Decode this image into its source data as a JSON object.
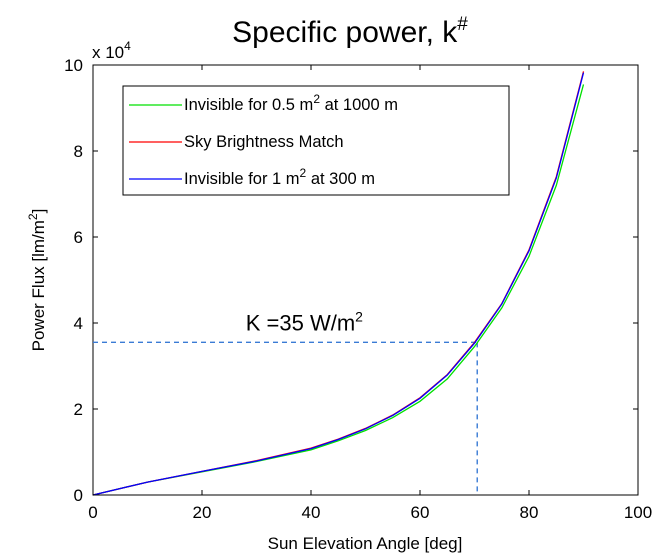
{
  "chart_data": {
    "type": "line",
    "title": "Specific power, k",
    "title_sup": "#",
    "xlabel": "Sun Elevation Angle [deg]",
    "ylabel": "Power Flux [lm/m",
    "ylabel_sup": "2",
    "ylabel_end": "]",
    "xlim": [
      0,
      100
    ],
    "ylim": [
      0,
      100000
    ],
    "xticks": [
      0,
      20,
      40,
      60,
      80,
      100
    ],
    "yticks": [
      0,
      20000,
      40000,
      60000,
      80000,
      100000
    ],
    "ytick_labels": [
      "0",
      "2",
      "4",
      "6",
      "8",
      "10"
    ],
    "y_multiplier_base": "x 10",
    "y_multiplier_exp": "4",
    "grid": false,
    "legend_position": "top-left",
    "series": [
      {
        "name_pre": "Invisible for 0.5 m",
        "name_sup": "2",
        "name_post": " at 1000 m",
        "color": "#00e000",
        "x": [
          0,
          10,
          20,
          30,
          40,
          45,
          50,
          55,
          60,
          65,
          70,
          75,
          80,
          85,
          90
        ],
        "y": [
          0,
          3000,
          5400,
          7800,
          10500,
          12600,
          15000,
          18000,
          21800,
          27000,
          34500,
          43500,
          55500,
          72000,
          95500
        ]
      },
      {
        "name_pre": "Sky Brightness Match",
        "name_sup": "",
        "name_post": "",
        "color": "#ff0000",
        "x": [
          0,
          10,
          20,
          30,
          40,
          45,
          50,
          55,
          60,
          65,
          70,
          75,
          80,
          85,
          90
        ],
        "y": [
          0,
          3000,
          5500,
          8000,
          10900,
          13000,
          15500,
          18600,
          22600,
          28000,
          35500,
          44500,
          57000,
          74000,
          98500
        ]
      },
      {
        "name_pre": "Invisible for 1 m",
        "name_sup": "2",
        "name_post": " at 300 m",
        "color": "#0000ff",
        "x": [
          0,
          10,
          20,
          30,
          40,
          45,
          50,
          55,
          60,
          65,
          70,
          75,
          80,
          85,
          90
        ],
        "y": [
          0,
          3000,
          5500,
          7900,
          10800,
          12900,
          15400,
          18500,
          22500,
          27900,
          35300,
          44400,
          56800,
          73700,
          98200
        ]
      }
    ],
    "reference_lines": {
      "color": "#3a7bd5",
      "x": 70.5,
      "y": 35500
    },
    "annotation": {
      "text": "K =35 W/m",
      "sup": "2",
      "x": 35,
      "y": 39000
    }
  }
}
